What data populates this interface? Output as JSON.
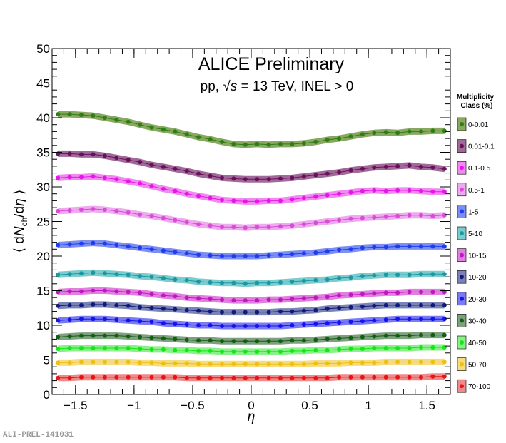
{
  "chart_data": {
    "type": "scatter",
    "title": "ALICE Preliminary",
    "subtitle_prefix": "pp, ",
    "subtitle_sqrt": "√s",
    "subtitle_suffix": " = 13 TeV, INEL > 0",
    "xlabel": "η",
    "ylabel": "⟨ dN_ch/dη ⟩",
    "ylabel_parts": [
      "⟨ d",
      "N",
      "ch",
      "/d",
      "η",
      " ⟩"
    ],
    "xlim": [
      -1.7,
      1.7
    ],
    "ylim": [
      0,
      50
    ],
    "xticks": [
      -1.5,
      -1,
      -0.5,
      0,
      0.5,
      1,
      1.5
    ],
    "xtick_labels": [
      "−1.5",
      "−1",
      "−0.5",
      "0",
      "0.5",
      "1",
      "1.5"
    ],
    "yticks": [
      0,
      5,
      10,
      15,
      20,
      25,
      30,
      35,
      40,
      45,
      50
    ],
    "ytick_labels": [
      "0",
      "5",
      "10",
      "15",
      "20",
      "25",
      "30",
      "35",
      "40",
      "45",
      "50"
    ],
    "legend_title": [
      "Multiplicity",
      "Class (%)"
    ],
    "x_start": -1.65,
    "x_step": 0.1,
    "series": [
      {
        "name": "0-0.01",
        "color": "#2e7d17",
        "band": "#88a860",
        "values": [
          40.5,
          40.5,
          40.4,
          40.3,
          40.0,
          39.7,
          39.4,
          39.0,
          38.6,
          38.3,
          38.0,
          37.6,
          37.2,
          36.9,
          36.5,
          36.2,
          36.1,
          36.2,
          36.1,
          36.2,
          36.2,
          36.3,
          36.5,
          36.8,
          37.0,
          37.3,
          37.6,
          37.8,
          37.9,
          37.8,
          38.0,
          38.0,
          38.1,
          38.1
        ]
      },
      {
        "name": "0.01-0.1",
        "color": "#6a0f5c",
        "band": "#a06a98",
        "values": [
          34.8,
          34.8,
          34.7,
          34.7,
          34.5,
          34.2,
          33.9,
          33.6,
          33.2,
          32.9,
          32.6,
          32.3,
          31.9,
          31.6,
          31.3,
          31.2,
          31.1,
          31.1,
          31.1,
          31.2,
          31.3,
          31.5,
          31.7,
          31.9,
          32.1,
          32.4,
          32.6,
          32.8,
          32.9,
          33.0,
          33.1,
          32.9,
          32.8,
          32.6
        ]
      },
      {
        "name": "0.1-0.5",
        "color": "#e815e8",
        "band": "#f08af0",
        "values": [
          31.3,
          31.4,
          31.4,
          31.5,
          31.3,
          31.1,
          30.8,
          30.5,
          30.1,
          29.7,
          29.4,
          29.0,
          28.7,
          28.4,
          28.1,
          28.0,
          27.9,
          27.9,
          28.0,
          28.0,
          28.2,
          28.4,
          28.6,
          28.8,
          29.0,
          29.2,
          29.4,
          29.5,
          29.4,
          29.5,
          29.5,
          29.4,
          29.3,
          29.3
        ]
      },
      {
        "name": "0.5-1",
        "color": "#d84cd8",
        "band": "#eeaaee",
        "values": [
          26.5,
          26.6,
          26.7,
          26.8,
          26.7,
          26.5,
          26.3,
          26.0,
          25.8,
          25.5,
          25.2,
          24.9,
          24.6,
          24.4,
          24.2,
          24.2,
          24.1,
          24.2,
          24.2,
          24.3,
          24.4,
          24.6,
          24.8,
          25.0,
          25.2,
          25.4,
          25.5,
          25.6,
          25.7,
          25.8,
          25.9,
          25.9,
          25.8,
          25.9
        ]
      },
      {
        "name": "1-5",
        "color": "#1e3cf0",
        "band": "#7d8ef2",
        "values": [
          21.6,
          21.7,
          21.8,
          21.9,
          21.8,
          21.6,
          21.4,
          21.2,
          21.0,
          20.8,
          20.6,
          20.4,
          20.2,
          20.1,
          20.0,
          20.0,
          20.0,
          20.0,
          20.1,
          20.2,
          20.3,
          20.4,
          20.5,
          20.7,
          20.9,
          21.0,
          21.2,
          21.3,
          21.3,
          21.4,
          21.4,
          21.4,
          21.4,
          21.4
        ]
      },
      {
        "name": "5-10",
        "color": "#1a9aa0",
        "band": "#7ccbcf",
        "values": [
          17.3,
          17.4,
          17.5,
          17.6,
          17.5,
          17.4,
          17.3,
          17.1,
          17.0,
          16.8,
          16.6,
          16.5,
          16.3,
          16.2,
          16.1,
          16.1,
          16.0,
          16.1,
          16.1,
          16.2,
          16.3,
          16.4,
          16.5,
          16.6,
          16.8,
          16.9,
          17.1,
          17.2,
          17.3,
          17.3,
          17.3,
          17.4,
          17.4,
          17.4
        ]
      },
      {
        "name": "10-15",
        "color": "#c018c0",
        "band": "#e07fe0",
        "values": [
          14.8,
          14.9,
          14.9,
          15.0,
          15.0,
          14.9,
          14.8,
          14.7,
          14.5,
          14.3,
          14.2,
          14.0,
          13.9,
          13.8,
          13.7,
          13.6,
          13.6,
          13.6,
          13.7,
          13.7,
          13.8,
          13.9,
          14.0,
          14.1,
          14.3,
          14.4,
          14.5,
          14.6,
          14.7,
          14.7,
          14.8,
          14.8,
          14.8,
          14.8
        ]
      },
      {
        "name": "10-20",
        "color": "#101c7a",
        "band": "#7a82b6",
        "values": [
          12.8,
          12.9,
          12.9,
          13.0,
          13.0,
          12.9,
          12.8,
          12.6,
          12.5,
          12.4,
          12.3,
          12.2,
          12.1,
          12.0,
          11.9,
          11.9,
          11.9,
          11.9,
          11.9,
          12.0,
          12.0,
          12.1,
          12.2,
          12.4,
          12.5,
          12.6,
          12.7,
          12.8,
          12.9,
          12.9,
          12.9,
          12.9,
          12.9,
          12.9
        ]
      },
      {
        "name": "20-30",
        "color": "#1414f0",
        "band": "#7a7af2",
        "values": [
          10.7,
          10.8,
          10.9,
          10.9,
          10.9,
          10.8,
          10.7,
          10.6,
          10.5,
          10.3,
          10.2,
          10.1,
          10.0,
          10.0,
          9.9,
          9.9,
          9.9,
          9.9,
          9.9,
          9.9,
          10.0,
          10.1,
          10.2,
          10.3,
          10.4,
          10.5,
          10.6,
          10.7,
          10.8,
          10.9,
          10.9,
          10.9,
          10.9,
          10.9
        ]
      },
      {
        "name": "30-40",
        "color": "#155c15",
        "band": "#7da07d",
        "values": [
          8.3,
          8.4,
          8.5,
          8.5,
          8.5,
          8.5,
          8.4,
          8.3,
          8.2,
          8.1,
          8.0,
          7.9,
          7.8,
          7.8,
          7.7,
          7.7,
          7.7,
          7.7,
          7.7,
          7.7,
          7.8,
          7.8,
          7.9,
          8.0,
          8.1,
          8.2,
          8.3,
          8.4,
          8.5,
          8.5,
          8.5,
          8.6,
          8.6,
          8.6
        ]
      },
      {
        "name": "40-50",
        "color": "#12e812",
        "band": "#8af08a",
        "values": [
          6.6,
          6.7,
          6.7,
          6.7,
          6.7,
          6.7,
          6.7,
          6.6,
          6.5,
          6.5,
          6.4,
          6.4,
          6.3,
          6.3,
          6.2,
          6.2,
          6.2,
          6.2,
          6.2,
          6.2,
          6.3,
          6.3,
          6.4,
          6.4,
          6.5,
          6.6,
          6.6,
          6.7,
          6.7,
          6.7,
          6.7,
          6.8,
          6.8,
          6.8
        ]
      },
      {
        "name": "50-70",
        "color": "#f0c010",
        "band": "#f6dc80",
        "values": [
          4.6,
          4.6,
          4.7,
          4.7,
          4.7,
          4.7,
          4.7,
          4.6,
          4.6,
          4.5,
          4.5,
          4.5,
          4.4,
          4.4,
          4.4,
          4.4,
          4.4,
          4.4,
          4.4,
          4.4,
          4.4,
          4.4,
          4.5,
          4.5,
          4.5,
          4.6,
          4.6,
          4.6,
          4.7,
          4.7,
          4.7,
          4.7,
          4.7,
          4.7
        ]
      },
      {
        "name": "70-100",
        "color": "#e81414",
        "band": "#f08a8a",
        "values": [
          2.4,
          2.4,
          2.5,
          2.5,
          2.5,
          2.5,
          2.5,
          2.5,
          2.5,
          2.5,
          2.5,
          2.4,
          2.4,
          2.4,
          2.4,
          2.4,
          2.4,
          2.4,
          2.4,
          2.4,
          2.4,
          2.4,
          2.4,
          2.4,
          2.5,
          2.5,
          2.5,
          2.5,
          2.5,
          2.5,
          2.5,
          2.5,
          2.6,
          2.6
        ]
      }
    ]
  },
  "footer": "ALI-PREL-141031"
}
